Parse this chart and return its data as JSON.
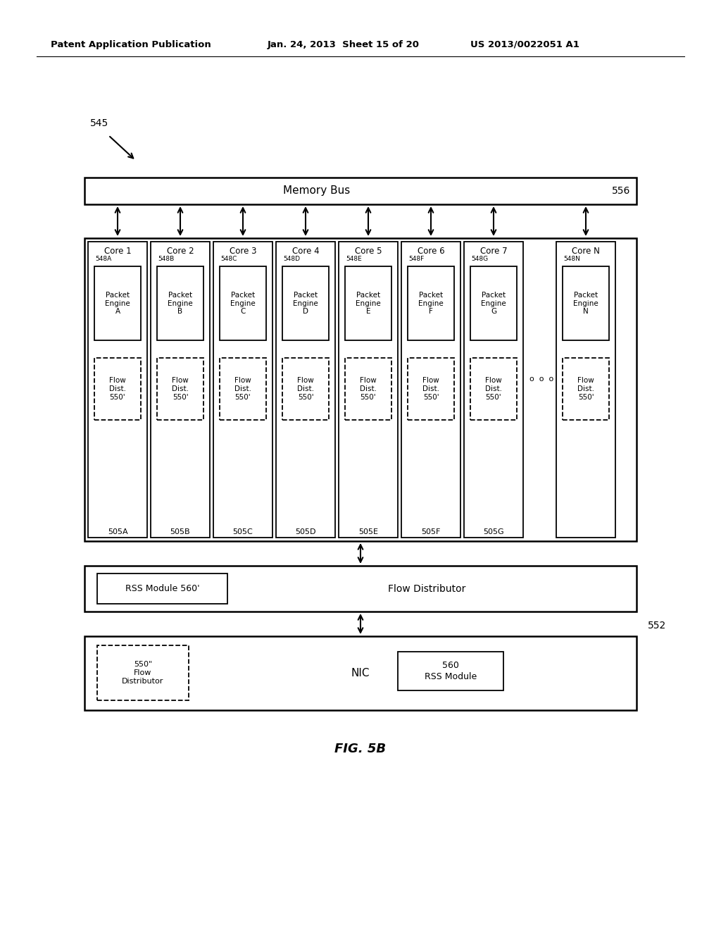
{
  "header_left": "Patent Application Publication",
  "header_mid": "Jan. 24, 2013  Sheet 15 of 20",
  "header_right": "US 2013/0022051 A1",
  "fig_label": "FIG. 5B",
  "label_545": "545",
  "memory_bus_label": "Memory Bus",
  "memory_bus_id": "556",
  "cores": [
    "Core 1",
    "Core 2",
    "Core 3",
    "Core 4",
    "Core 5",
    "Core 6",
    "Core 7",
    "Core N"
  ],
  "packet_ids": [
    "548A",
    "548B",
    "548C",
    "548D",
    "548E",
    "548F",
    "548G",
    "548N"
  ],
  "packet_labels": [
    "Packet\nEngine\nA",
    "Packet\nEngine\nB",
    "Packet\nEngine\nC",
    "Packet\nEngine\nD",
    "Packet\nEngine\nE",
    "Packet\nEngine\nF",
    "Packet\nEngine\nG",
    "Packet\nEngine\nN"
  ],
  "flow_labels": [
    "Flow\nDist.\n550'",
    "Flow\nDist.\n550'",
    "Flow\nDist.\n550'",
    "Flow\nDist.\n550'",
    "Flow\nDist.\n550'",
    "Flow\nDist.\n550'",
    "Flow\nDist.\n550'",
    "Flow\nDist.\n550'"
  ],
  "core_ids": [
    "505A",
    "505B",
    "505C",
    "505D",
    "505E",
    "505F",
    "505G",
    ""
  ],
  "flow_dist_box_label": "Flow Distributor",
  "rss_module_label": "RSS Module 560'",
  "nic_label": "NIC",
  "nic_id": "552",
  "rss_module_nic_label": "560\nRSS Module",
  "flow_dist_nic_label": "550\"\nFlow\nDistributor",
  "bg_color": "#ffffff",
  "box_color": "#000000",
  "text_color": "#000000"
}
